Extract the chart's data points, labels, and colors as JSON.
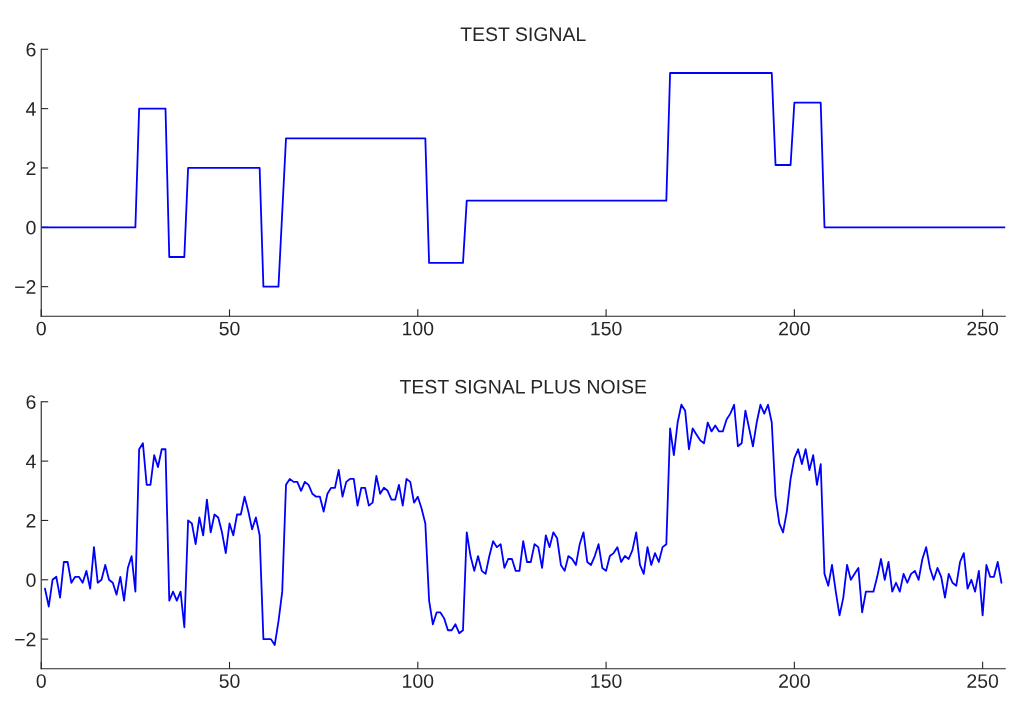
{
  "chart_data": [
    {
      "type": "line",
      "title": "TEST SIGNAL",
      "xlim": [
        0,
        256
      ],
      "ylim": [
        -3,
        6
      ],
      "xticks": [
        0,
        50,
        100,
        150,
        200,
        250
      ],
      "yticks": [
        -2,
        0,
        2,
        4,
        6
      ],
      "grid": false,
      "series": [
        {
          "color": "#0000ff",
          "x": [
            0,
            25,
            26,
            33,
            34,
            38,
            39,
            58,
            59,
            63,
            65,
            102,
            103,
            112,
            113,
            166,
            167,
            194,
            195,
            199,
            200,
            207,
            208,
            256
          ],
          "values": [
            0,
            0,
            4,
            4,
            -1,
            -1,
            2,
            2,
            -2,
            -2,
            3,
            3,
            -1.2,
            -1.2,
            0.9,
            0.9,
            5.2,
            5.2,
            2.1,
            2.1,
            4.2,
            4.2,
            0,
            0
          ]
        }
      ]
    },
    {
      "type": "line",
      "title": "TEST SIGNAL PLUS NOISE",
      "xlim": [
        0,
        256
      ],
      "ylim": [
        -3,
        6
      ],
      "xticks": [
        0,
        50,
        100,
        150,
        200,
        250
      ],
      "yticks": [
        -2,
        0,
        2,
        4,
        6
      ],
      "grid": false,
      "series": [
        {
          "color": "#0000ff",
          "x": [
            1,
            2,
            3,
            4,
            5,
            6,
            7,
            8,
            9,
            10,
            11,
            12,
            13,
            14,
            15,
            16,
            17,
            18,
            19,
            20,
            21,
            22,
            23,
            24,
            25,
            26,
            27,
            28,
            29,
            30,
            31,
            32,
            33,
            34,
            35,
            36,
            37,
            38,
            39,
            40,
            41,
            42,
            43,
            44,
            45,
            46,
            47,
            48,
            49,
            50,
            51,
            52,
            53,
            54,
            55,
            56,
            57,
            58,
            59,
            60,
            61,
            62,
            63,
            64,
            65,
            66,
            67,
            68,
            69,
            70,
            71,
            72,
            73,
            74,
            75,
            76,
            77,
            78,
            79,
            80,
            81,
            82,
            83,
            84,
            85,
            86,
            87,
            88,
            89,
            90,
            91,
            92,
            93,
            94,
            95,
            96,
            97,
            98,
            99,
            100,
            101,
            102,
            103,
            104,
            105,
            106,
            107,
            108,
            109,
            110,
            111,
            112,
            113,
            114,
            115,
            116,
            117,
            118,
            119,
            120,
            121,
            122,
            123,
            124,
            125,
            126,
            127,
            128,
            129,
            130,
            131,
            132,
            133,
            134,
            135,
            136,
            137,
            138,
            139,
            140,
            141,
            142,
            143,
            144,
            145,
            146,
            147,
            148,
            149,
            150,
            151,
            152,
            153,
            154,
            155,
            156,
            157,
            158,
            159,
            160,
            161,
            162,
            163,
            164,
            165,
            166,
            167,
            168,
            169,
            170,
            171,
            172,
            173,
            174,
            175,
            176,
            177,
            178,
            179,
            180,
            181,
            182,
            183,
            184,
            185,
            186,
            187,
            188,
            189,
            190,
            191,
            192,
            193,
            194,
            195,
            196,
            197,
            198,
            199,
            200,
            201,
            202,
            203,
            204,
            205,
            206,
            207,
            208,
            209,
            210,
            211,
            212,
            213,
            214,
            215,
            216,
            217,
            218,
            219,
            220,
            221,
            222,
            223,
            224,
            225,
            226,
            227,
            228,
            229,
            230,
            231,
            232,
            233,
            234,
            235,
            236,
            237,
            238,
            239,
            240,
            241,
            242,
            243,
            244,
            245,
            246,
            247,
            248,
            249,
            250,
            251,
            252,
            253,
            254,
            255
          ],
          "values": [
            -0.3,
            -0.9,
            0.0,
            0.1,
            -0.6,
            0.6,
            0.6,
            -0.1,
            0.1,
            0.1,
            -0.1,
            0.3,
            -0.3,
            1.1,
            -0.1,
            0.0,
            0.5,
            0.0,
            -0.1,
            -0.5,
            0.1,
            -0.7,
            0.4,
            0.8,
            -0.4,
            4.4,
            4.6,
            3.2,
            3.2,
            4.2,
            3.8,
            4.4,
            4.4,
            -0.7,
            -0.4,
            -0.7,
            -0.4,
            -1.6,
            2.0,
            1.9,
            1.2,
            2.1,
            1.5,
            2.7,
            1.6,
            2.2,
            2.1,
            1.6,
            0.9,
            1.9,
            1.5,
            2.2,
            2.2,
            2.8,
            2.3,
            1.7,
            2.1,
            1.5,
            -2.0,
            -2.0,
            -2.0,
            -2.2,
            -1.4,
            -0.4,
            3.2,
            3.4,
            3.3,
            3.3,
            3.0,
            3.3,
            3.2,
            2.9,
            2.8,
            2.8,
            2.3,
            2.9,
            3.1,
            3.1,
            3.7,
            2.8,
            3.3,
            3.4,
            3.4,
            2.5,
            3.1,
            3.1,
            2.5,
            2.6,
            3.5,
            2.9,
            3.1,
            3.0,
            2.7,
            2.7,
            3.2,
            2.5,
            3.4,
            3.3,
            2.6,
            2.8,
            2.4,
            1.9,
            -0.7,
            -1.5,
            -1.1,
            -1.1,
            -1.3,
            -1.7,
            -1.7,
            -1.5,
            -1.8,
            -1.7,
            1.6,
            0.8,
            0.3,
            0.8,
            0.3,
            0.2,
            0.8,
            1.3,
            1.1,
            1.2,
            0.4,
            0.7,
            0.7,
            0.3,
            0.3,
            1.3,
            0.6,
            0.6,
            1.2,
            1.1,
            0.4,
            1.5,
            1.1,
            1.6,
            1.4,
            0.5,
            0.3,
            0.8,
            0.7,
            0.5,
            1.2,
            1.6,
            0.6,
            0.5,
            0.8,
            1.2,
            0.4,
            0.3,
            0.8,
            0.9,
            1.1,
            0.6,
            0.8,
            0.7,
            1.0,
            1.6,
            0.5,
            0.2,
            1.1,
            0.5,
            0.9,
            0.6,
            1.1,
            1.2,
            5.1,
            4.2,
            5.3,
            5.9,
            5.7,
            4.4,
            5.1,
            4.9,
            4.7,
            4.6,
            5.3,
            5.0,
            5.2,
            5.0,
            5.0,
            5.4,
            5.6,
            5.9,
            4.5,
            4.6,
            5.7,
            5.1,
            4.5,
            5.3,
            5.9,
            5.6,
            5.9,
            5.3,
            2.8,
            1.9,
            1.6,
            2.3,
            3.4,
            4.1,
            4.4,
            3.9,
            4.4,
            3.7,
            4.2,
            3.2,
            3.9,
            0.2,
            -0.2,
            0.5,
            -0.4,
            -1.2,
            -0.6,
            0.5,
            0.0,
            0.2,
            0.4,
            -1.1,
            -0.4,
            -0.4,
            -0.4,
            0.1,
            0.7,
            0.0,
            0.6,
            -0.4,
            -0.1,
            -0.4,
            0.2,
            -0.1,
            0.2,
            0.3,
            0.0,
            0.7,
            1.1,
            0.4,
            0.0,
            0.4,
            0.1,
            -0.6,
            0.2,
            -0.1,
            -0.2,
            0.6,
            0.9,
            -0.3,
            0.0,
            -0.4,
            0.3,
            -1.2,
            0.5,
            0.1,
            0.1,
            0.6,
            -0.1
          ]
        }
      ]
    }
  ]
}
